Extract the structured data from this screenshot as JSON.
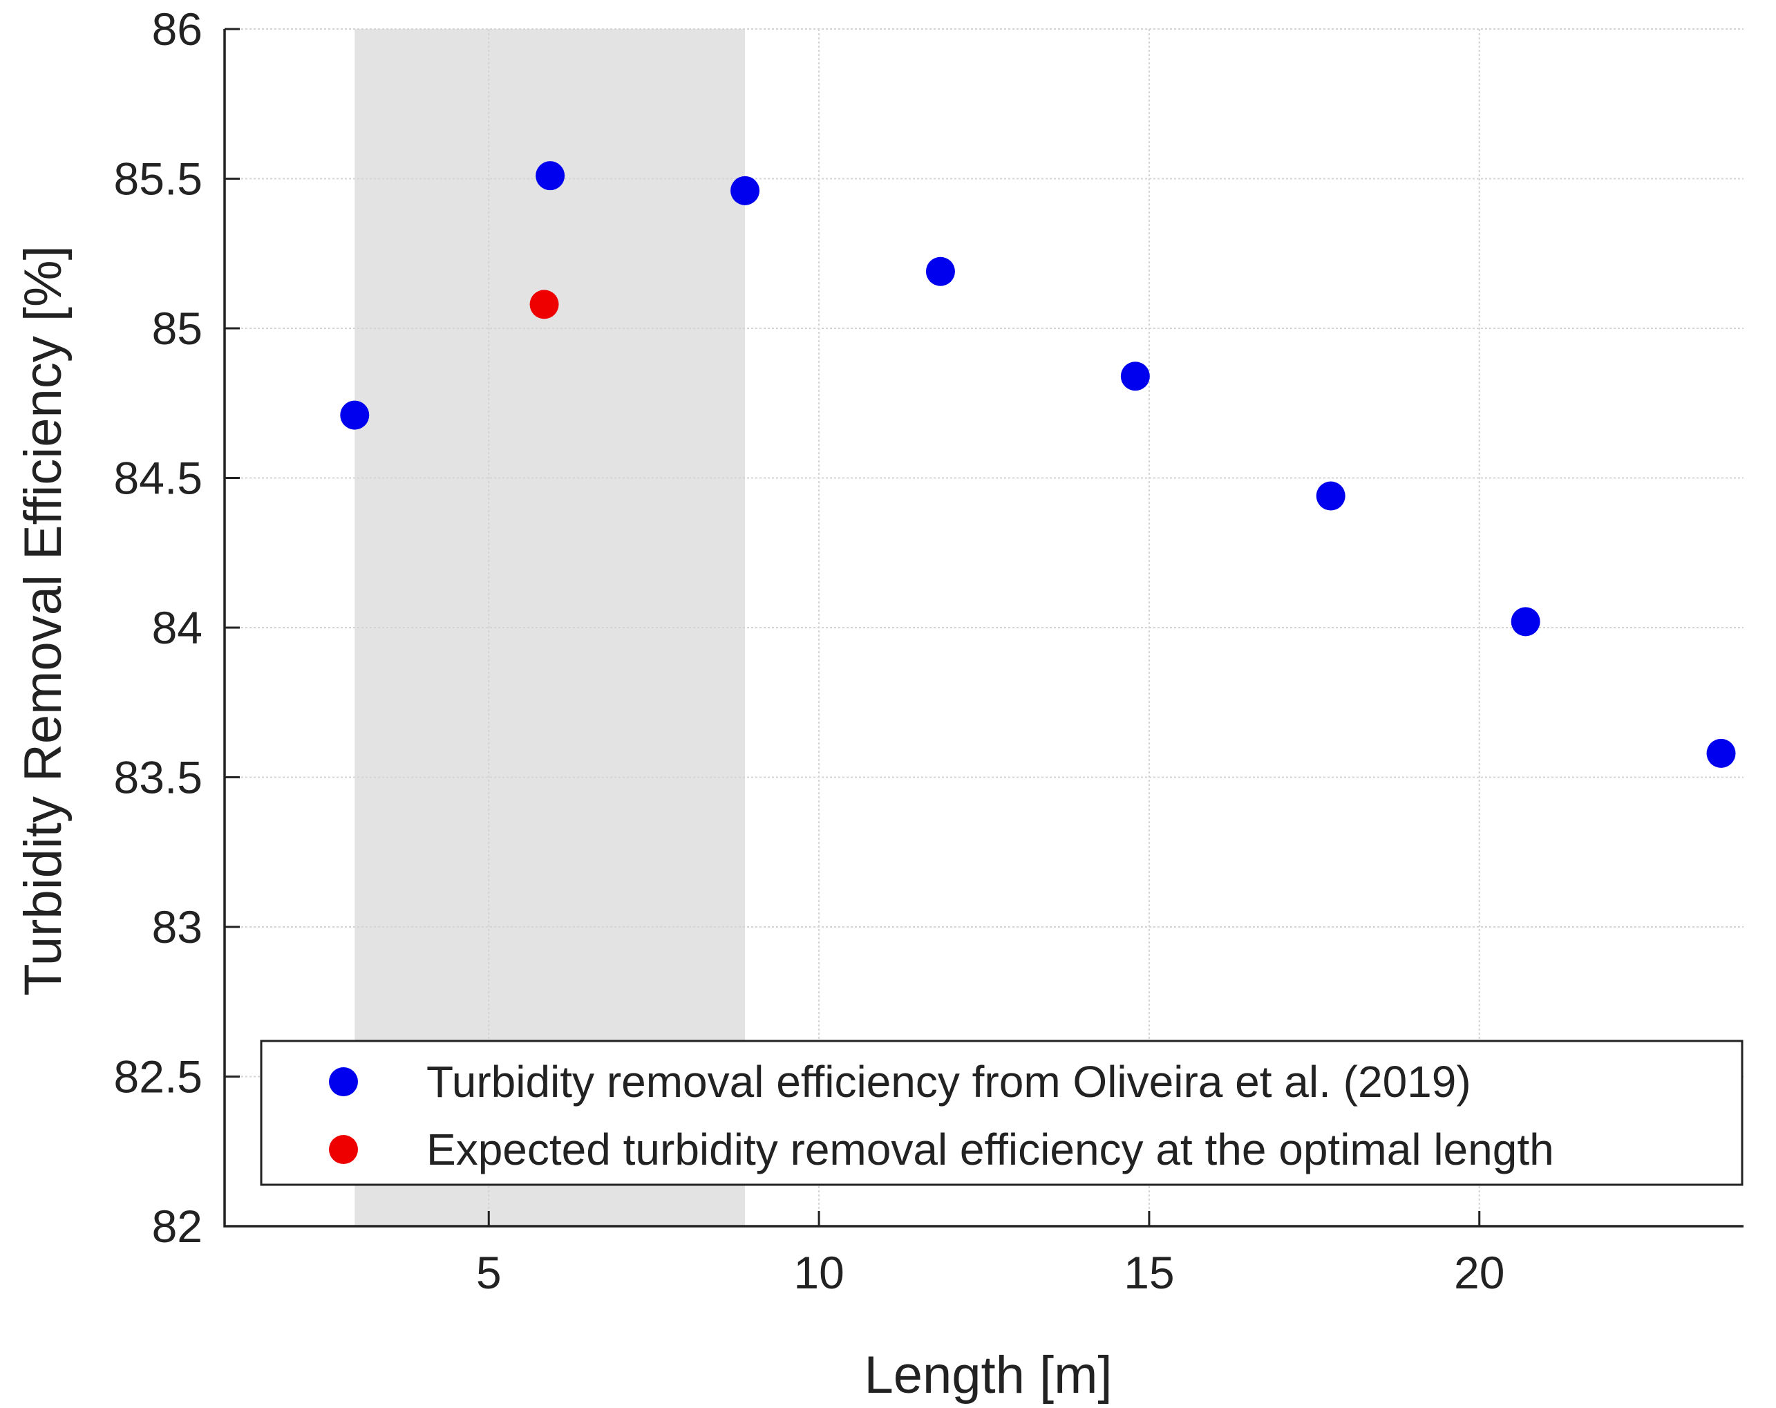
{
  "chart_data": {
    "type": "scatter",
    "title": "",
    "xlabel": "Length [m]",
    "ylabel": "Turbidity Removal Efficiency [%]",
    "xlim": [
      1,
      24
    ],
    "ylim": [
      82,
      86
    ],
    "xticks": [
      5,
      10,
      15,
      20
    ],
    "yticks": [
      82,
      82.5,
      83,
      83.5,
      84,
      84.5,
      85,
      85.5,
      86
    ],
    "xtick_labels": [
      "5",
      "10",
      "15",
      "20"
    ],
    "ytick_labels": [
      "82",
      "82.5",
      "83",
      "83.5",
      "84",
      "84.5",
      "85",
      "85.5",
      "86"
    ],
    "grid": true,
    "shaded_region": {
      "x_start": 2.97,
      "x_end": 8.88,
      "color": "#e3e3e3"
    },
    "legend_position": "bottom-right",
    "series": [
      {
        "name": "Turbidity removal efficiency from Oliveira et al. (2019)",
        "color": "#0000ee",
        "points": [
          {
            "x": 2.97,
            "y": 84.71
          },
          {
            "x": 5.93,
            "y": 85.51
          },
          {
            "x": 8.88,
            "y": 85.46
          },
          {
            "x": 11.84,
            "y": 85.19
          },
          {
            "x": 14.79,
            "y": 84.84
          },
          {
            "x": 17.75,
            "y": 84.44
          },
          {
            "x": 20.7,
            "y": 84.02
          },
          {
            "x": 23.66,
            "y": 83.58
          }
        ]
      },
      {
        "name": "Expected turbidity removal efficiency at the optimal length",
        "color": "#ee0000",
        "points": [
          {
            "x": 5.84,
            "y": 85.08
          }
        ]
      }
    ]
  }
}
